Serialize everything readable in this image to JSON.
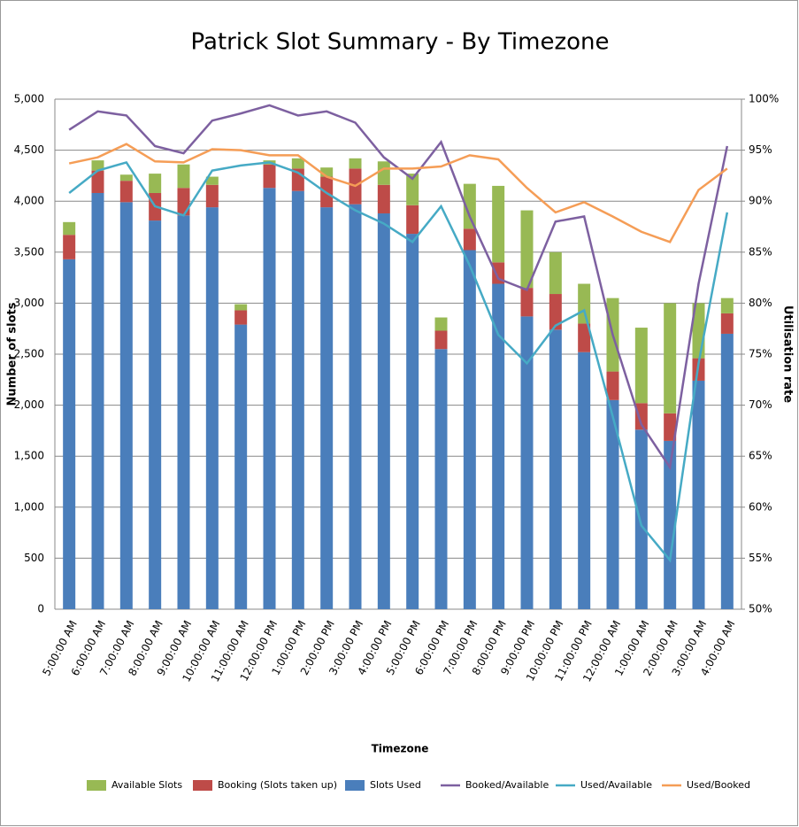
{
  "chart_data": {
    "type": "bar",
    "title": "Patrick Slot Summary - By Timezone",
    "x_label": "Timezone",
    "y_label": "Number of slots",
    "y2_label": "Utilisation rate",
    "stacked": true,
    "grid": true,
    "categories": [
      "5:00:00 AM",
      "6:00:00 AM",
      "7:00:00 AM",
      "8:00:00 AM",
      "9:00:00 AM",
      "10:00:00 AM",
      "11:00:00 AM",
      "12:00:00 PM",
      "1:00:00 PM",
      "2:00:00 PM",
      "3:00:00 PM",
      "4:00:00 PM",
      "5:00:00 PM",
      "6:00:00 PM",
      "7:00:00 PM",
      "8:00:00 PM",
      "9:00:00 PM",
      "10:00:00 PM",
      "11:00:00 PM",
      "12:00:00 AM",
      "1:00:00 AM",
      "2:00:00 AM",
      "3:00:00 AM",
      "4:00:00 AM"
    ],
    "series": [
      {
        "name": "Available Slots",
        "type": "bar",
        "color": "#98b954",
        "values": [
          125,
          100,
          60,
          190,
          230,
          80,
          60,
          40,
          100,
          90,
          100,
          230,
          310,
          130,
          440,
          750,
          760,
          410,
          390,
          720,
          740,
          1080,
          540,
          150
        ]
      },
      {
        "name": "Booking (Slots taken up)",
        "type": "bar",
        "color": "#be4b48",
        "values": [
          240,
          220,
          210,
          270,
          270,
          220,
          140,
          230,
          220,
          300,
          350,
          280,
          280,
          180,
          210,
          210,
          280,
          350,
          280,
          280,
          260,
          270,
          220,
          200
        ]
      },
      {
        "name": "Slots Used",
        "type": "bar",
        "color": "#4a7ebb",
        "values": [
          3430,
          4080,
          3990,
          3810,
          3860,
          3940,
          2790,
          4130,
          4100,
          3940,
          3970,
          3880,
          3680,
          2550,
          3520,
          3190,
          2870,
          2740,
          2520,
          2050,
          1760,
          1650,
          2240,
          2700
        ]
      },
      {
        "name": "Booked/Available",
        "type": "line",
        "axis": "y2",
        "color": "#7d60a0",
        "values": [
          97.0,
          98.8,
          98.4,
          95.4,
          94.7,
          97.9,
          98.6,
          99.4,
          98.4,
          98.8,
          97.7,
          94.3,
          92.2,
          95.8,
          88.5,
          82.4,
          81.3,
          88.0,
          88.5,
          76.9,
          68.1,
          63.9,
          81.9,
          95.4
        ]
      },
      {
        "name": "Used/Available",
        "type": "line",
        "axis": "y2",
        "color": "#46aac5",
        "values": [
          90.8,
          93.0,
          93.8,
          89.5,
          88.6,
          93.0,
          93.5,
          93.8,
          92.8,
          90.8,
          89.1,
          87.8,
          86.0,
          89.5,
          83.7,
          76.9,
          74.1,
          77.8,
          79.3,
          68.9,
          58.2,
          54.8,
          74.1,
          88.9
        ]
      },
      {
        "name": "Used/Booked",
        "type": "line",
        "axis": "y2",
        "color": "#f59d56",
        "values": [
          93.7,
          94.3,
          95.6,
          93.9,
          93.8,
          95.1,
          95.0,
          94.5,
          94.5,
          92.4,
          91.5,
          93.2,
          93.2,
          93.4,
          94.5,
          94.1,
          91.3,
          88.9,
          89.9,
          88.5,
          87.0,
          86.0,
          91.1,
          93.2
        ]
      }
    ],
    "ylim": [
      0,
      5000
    ],
    "yticks": [
      0,
      500,
      {
        "value": 1000,
        "label": "1,000"
      },
      {
        "value": 1500,
        "label": "1,500"
      },
      {
        "value": 2000,
        "label": "2,000"
      },
      {
        "value": 2500,
        "label": "2,500"
      },
      {
        "value": 3000,
        "label": "3,000"
      },
      {
        "value": 3500,
        "label": "3,500"
      },
      {
        "value": 4000,
        "label": "4,000"
      },
      {
        "value": 4500,
        "label": "4,500"
      },
      {
        "value": 5000,
        "label": "5,000"
      }
    ],
    "y2lim": [
      50,
      100
    ],
    "y2ticks": [
      {
        "value": 50,
        "label": "50%"
      },
      {
        "value": 55,
        "label": "55%"
      },
      {
        "value": 60,
        "label": "60%"
      },
      {
        "value": 65,
        "label": "65%"
      },
      {
        "value": 70,
        "label": "70%"
      },
      {
        "value": 75,
        "label": "75%"
      },
      {
        "value": 80,
        "label": "80%"
      },
      {
        "value": 85,
        "label": "85%"
      },
      {
        "value": 90,
        "label": "90%"
      },
      {
        "value": 95,
        "label": "95%"
      },
      {
        "value": 100,
        "label": "100%"
      }
    ]
  }
}
